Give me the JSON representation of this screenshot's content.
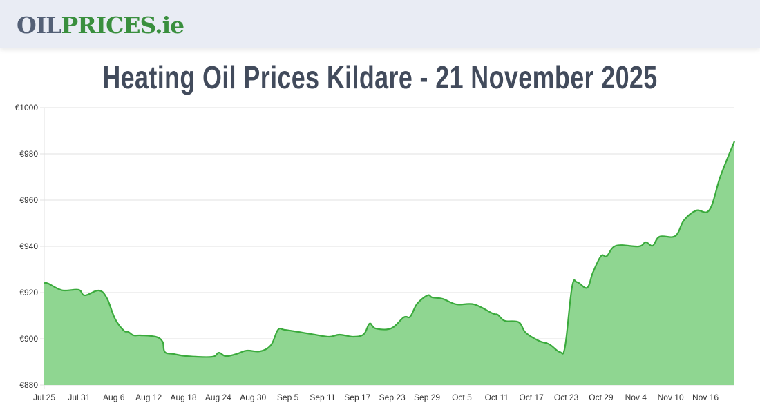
{
  "header": {
    "logo_part1": "OIL",
    "logo_part2": "PRICES.ie"
  },
  "page_title": "Heating Oil Prices Kildare - 21 November 2025",
  "colors": {
    "line": "#3aaa3c",
    "fill": "#8fd691",
    "logo_dark": "#546076",
    "logo_green": "#3a8f3e",
    "title": "#424b5c"
  },
  "chart_data": {
    "type": "area",
    "title": "Heating Oil Prices Kildare - 21 November 2025",
    "xlabel": "",
    "ylabel": "",
    "ylim": [
      880,
      1000
    ],
    "y_ticks": [
      "€880",
      "€900",
      "€920",
      "€940",
      "€960",
      "€980",
      "€1000"
    ],
    "x_ticks": [
      "Jul 25",
      "Jul 31",
      "Aug 6",
      "Aug 12",
      "Aug 18",
      "Aug 24",
      "Aug 30",
      "Sep 5",
      "Sep 11",
      "Sep 17",
      "Sep 23",
      "Sep 29",
      "Oct 5",
      "Oct 11",
      "Oct 17",
      "Oct 23",
      "Oct 29",
      "Nov 4",
      "Nov 10",
      "Nov 16"
    ],
    "grid": true,
    "legend": "none",
    "x_day_offset": [
      0,
      0.7,
      3.1,
      5.9,
      7,
      9.4,
      10.8,
      12.2,
      13.7,
      14.5,
      15.4,
      16.6,
      19.2,
      20.4,
      20.8,
      22.4,
      24.6,
      28.9,
      30.1,
      31.3,
      33.1,
      34.9,
      37.2,
      39.1,
      40.3,
      41.4,
      43.8,
      46.2,
      49.1,
      50.9,
      53.3,
      55.1,
      56.1,
      57.1,
      59.8,
      62,
      63.1,
      64.3,
      66.1,
      66.9,
      68.7,
      71.1,
      74.1,
      77.3,
      78.2,
      79.4,
      81.8,
      83,
      85.3,
      87.1,
      88.9,
      89.8,
      91,
      91.9,
      93.6,
      94.6,
      96,
      97,
      98.6,
      102.5,
      103.7,
      104.9,
      106.1,
      108.8,
      110.3,
      112.4,
      114.7,
      116.6,
      119
    ],
    "values": [
      924.2,
      923.9,
      921,
      921.2,
      918.8,
      920.9,
      917.6,
      908.7,
      903.6,
      903,
      901.5,
      901.5,
      900.9,
      898.8,
      894.3,
      893.4,
      892.5,
      892.2,
      894,
      892.5,
      893.4,
      894.9,
      894.6,
      897.3,
      903.9,
      903.9,
      903,
      902,
      900.9,
      901.8,
      900.9,
      902,
      906.6,
      904.5,
      904.5,
      909.3,
      909.6,
      915.2,
      918.8,
      917.9,
      917.3,
      914.9,
      914.9,
      911,
      910.4,
      907.8,
      907.2,
      902.7,
      899.1,
      897.6,
      894.3,
      896.7,
      922.4,
      924.5,
      922.1,
      928.7,
      935.8,
      935.8,
      940.3,
      940,
      941.8,
      940.3,
      944.2,
      944.5,
      951.3,
      955.5,
      955.8,
      970.4,
      985.4
    ]
  }
}
